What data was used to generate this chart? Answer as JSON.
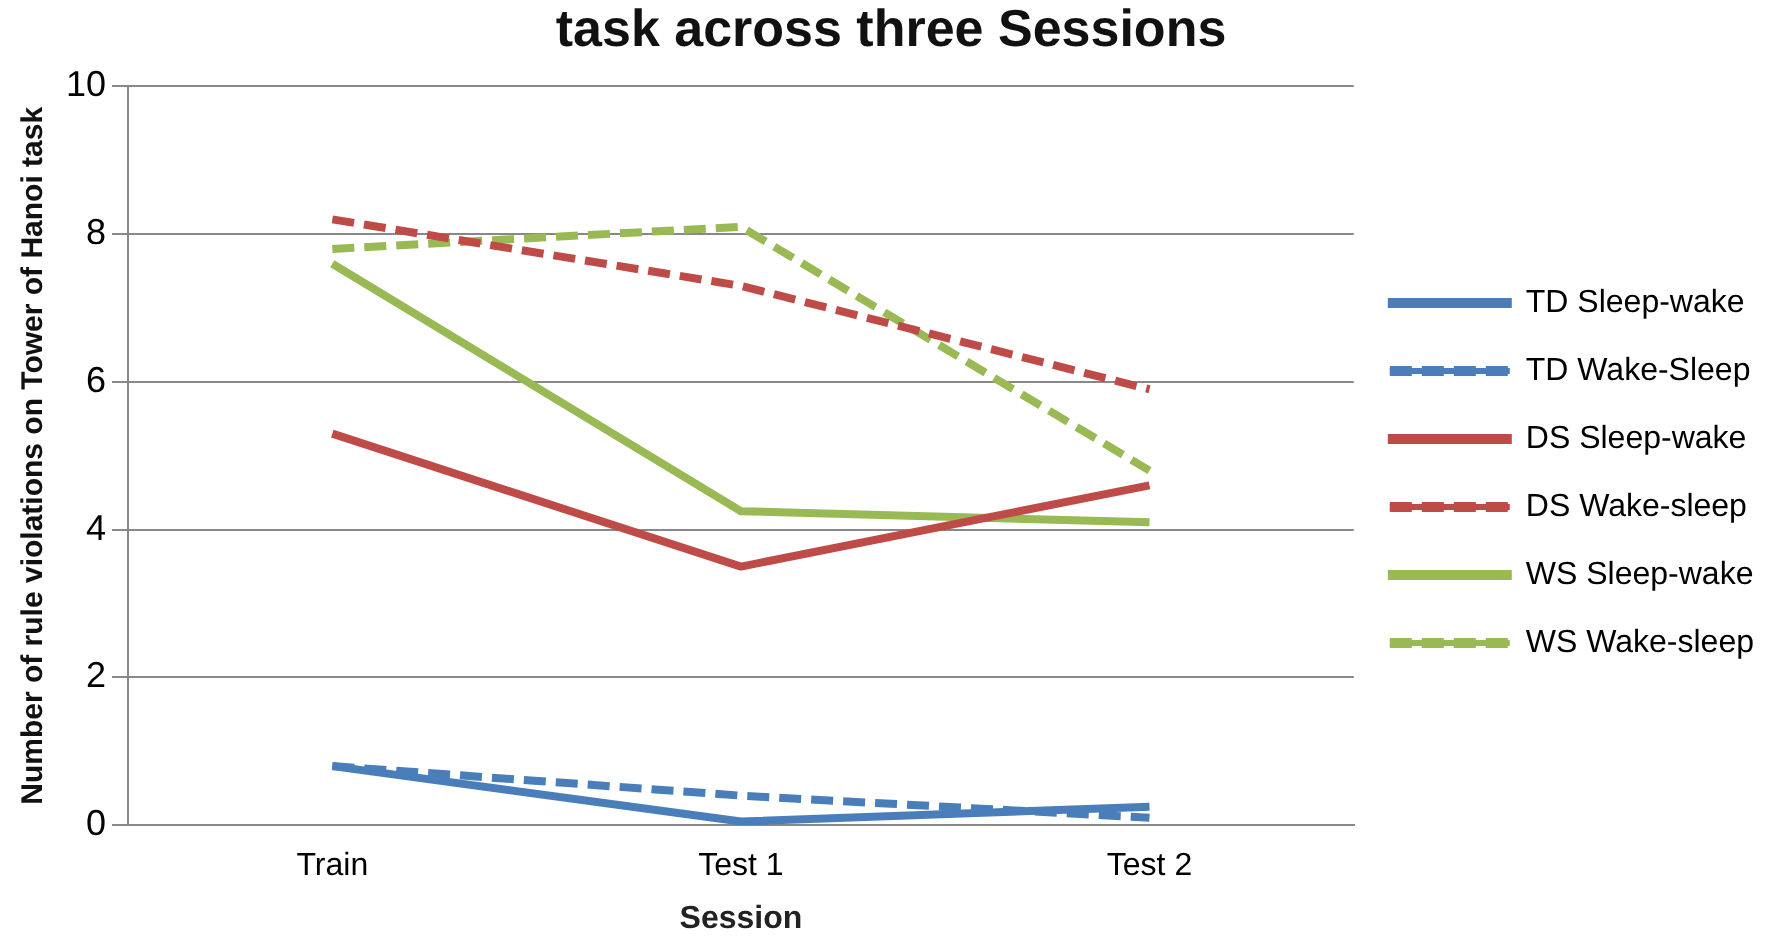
{
  "chart_data": {
    "type": "line",
    "title": "task across three Sessions",
    "xlabel": "Session",
    "ylabel": "Number of rule violations on Tower of Hanoi task",
    "categories": [
      "Train",
      "Test 1",
      "Test 2"
    ],
    "series": [
      {
        "name": "TD Sleep-wake",
        "color": "#4a7ebb",
        "line_style": "solid",
        "values": [
          0.8,
          0.05,
          0.25
        ]
      },
      {
        "name": "TD Wake-Sleep",
        "color": "#4a7ebb",
        "line_style": "dashed",
        "values": [
          0.8,
          0.4,
          0.1
        ]
      },
      {
        "name": "DS Sleep-wake",
        "color": "#be4b48",
        "line_style": "solid",
        "values": [
          5.3,
          3.5,
          4.6
        ]
      },
      {
        "name": "DS Wake-sleep",
        "color": "#be4b48",
        "line_style": "dashed",
        "values": [
          8.2,
          7.3,
          5.9
        ]
      },
      {
        "name": "WS Sleep-wake",
        "color": "#98b954",
        "line_style": "solid",
        "values": [
          7.6,
          4.25,
          4.1
        ]
      },
      {
        "name": "WS Wake-sleep",
        "color": "#98b954",
        "line_style": "dashed",
        "values": [
          7.8,
          8.1,
          4.8
        ]
      }
    ],
    "ylim": [
      0,
      10
    ],
    "yticks": [
      0,
      2,
      4,
      6,
      8,
      10
    ],
    "grid": "y",
    "legend": "right",
    "marker": "none"
  }
}
